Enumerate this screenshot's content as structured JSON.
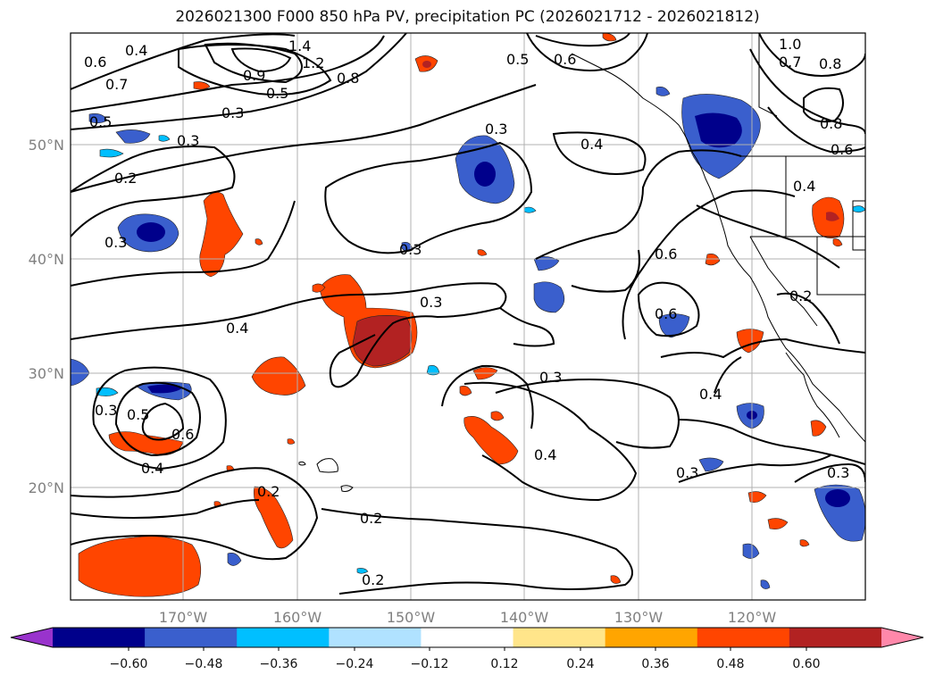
{
  "title": "2026021300 F000 850 hPa PV, precipitation PC (2026021712 - 2026021812)",
  "map": {
    "region": "North Pacific and western North America",
    "lon_labels": [
      "170°W",
      "160°W",
      "150°W",
      "140°W",
      "130°W",
      "120°W"
    ],
    "lat_labels": [
      "50°N",
      "40°N",
      "30°N",
      "20°N"
    ],
    "contour_labels": [
      "0.4",
      "1.4",
      "1.2",
      "0.9",
      "0.5",
      "0.8",
      "0.5",
      "0.6",
      "1.0",
      "0.7",
      "0.8",
      "0.6",
      "0.7",
      "0.5",
      "0.3",
      "0.3",
      "0.3",
      "0.4",
      "0.8",
      "0.6",
      "0.2",
      "0.3",
      "0.4",
      "0.3",
      "0.6",
      "0.6",
      "0.2",
      "0.4",
      "0.3",
      "0.3",
      "0.5",
      "0.6",
      "0.3",
      "0.4",
      "0.4",
      "0.4",
      "0.3",
      "0.3",
      "0.2",
      "0.2",
      "0.2"
    ]
  },
  "colorbar": {
    "tick_labels": [
      "−0.60",
      "−0.48",
      "−0.36",
      "−0.24",
      "−0.12",
      "0.12",
      "0.24",
      "0.36",
      "0.48",
      "0.60"
    ],
    "colors": [
      "#9933cc",
      "#00008b",
      "#3a5fcd",
      "#00bfff",
      "#b0e2ff",
      "#ffffff",
      "#ffe58a",
      "#ffa500",
      "#ff4500",
      "#b22222",
      "#ff88aa"
    ]
  }
}
